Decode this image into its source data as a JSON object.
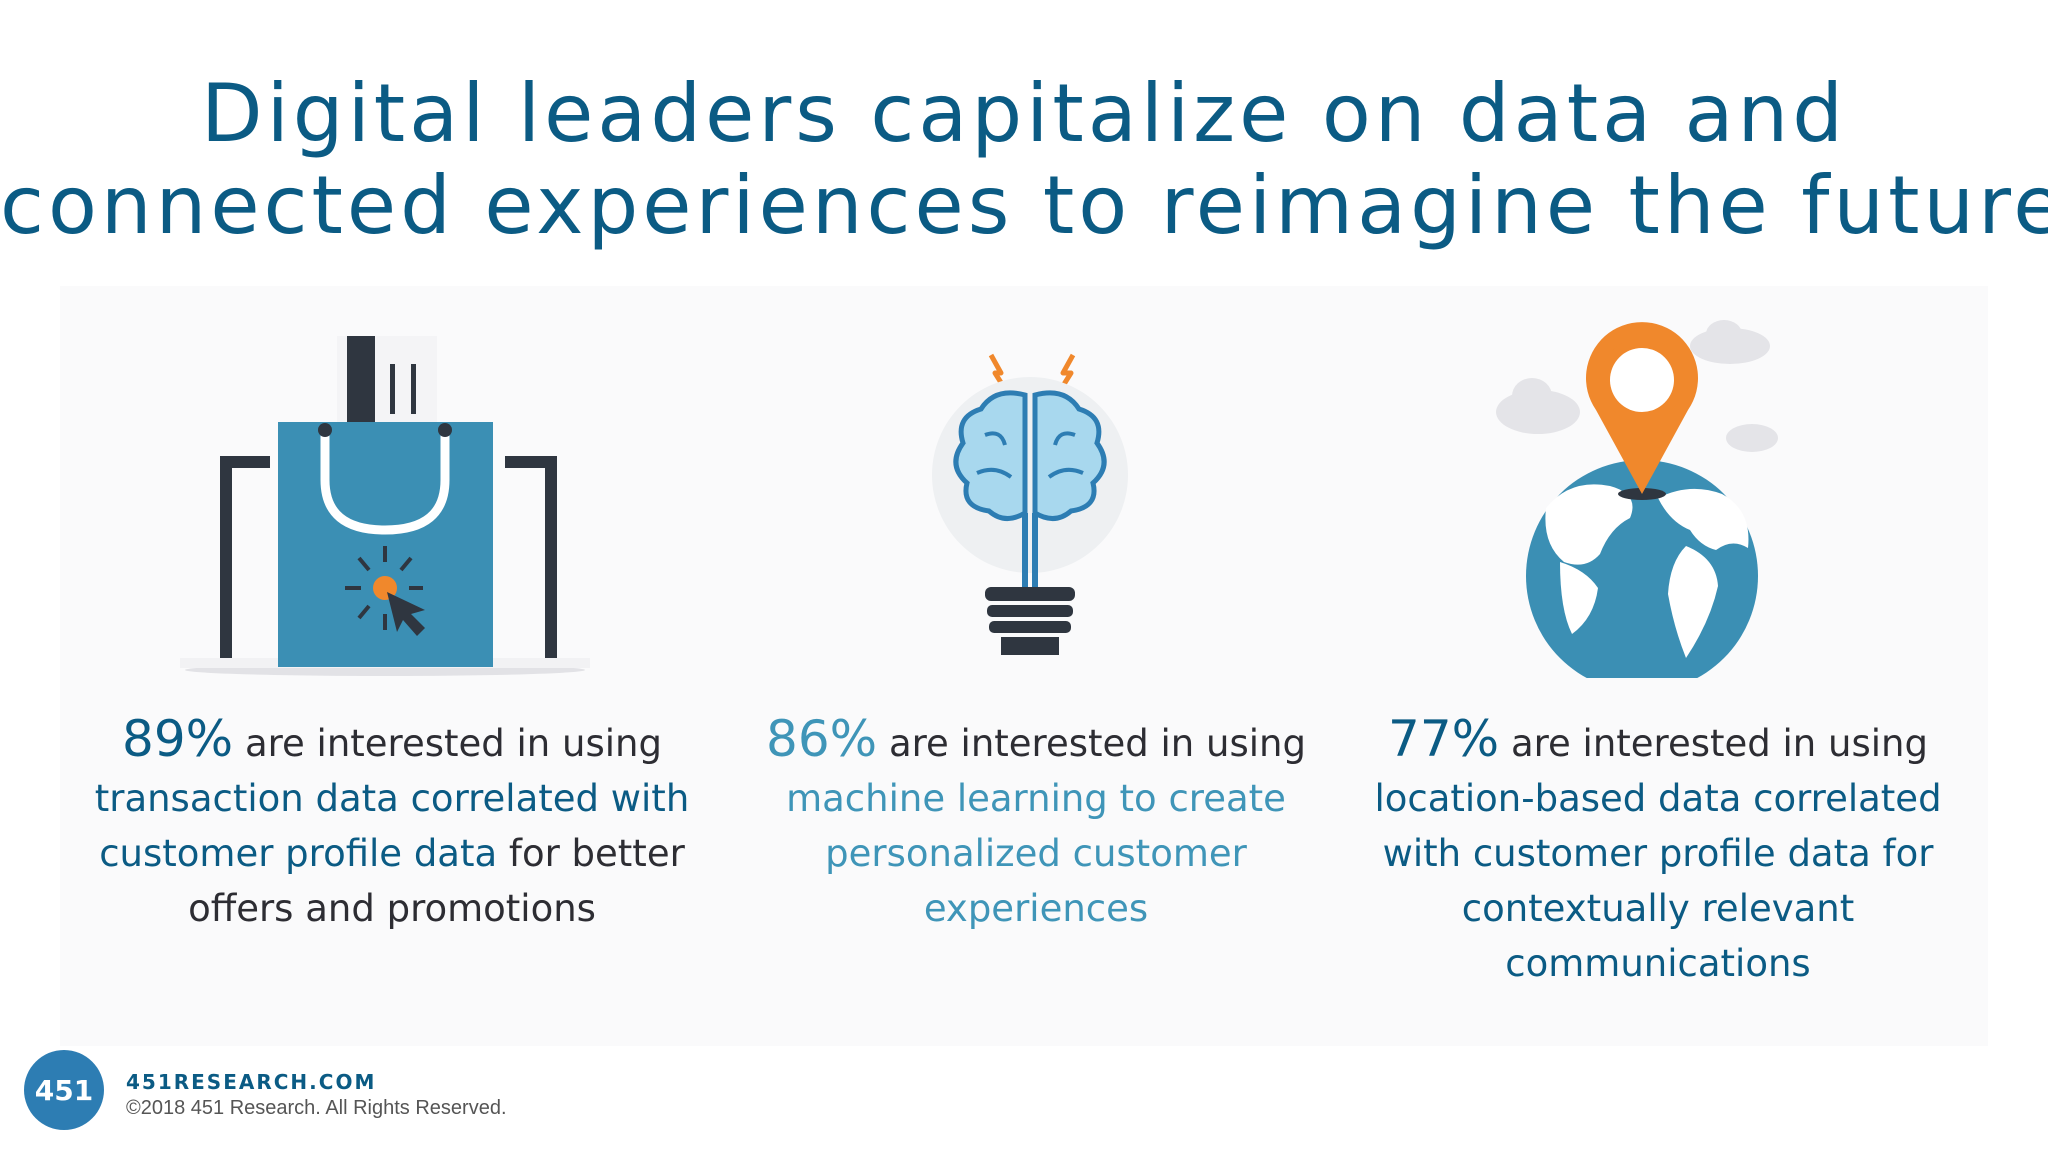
{
  "title": {
    "line1": "Digital leaders capitalize on data and",
    "line2": "connected experiences to reimagine the future"
  },
  "stats": [
    {
      "percent": "89%",
      "lead": " are interested in using",
      "highlight": "transaction data correlated with customer profile data",
      "tail": " for better offers and promotions",
      "icon": "shopping-bag-laptop-icon"
    },
    {
      "percent": "86%",
      "lead": " are interested in using ",
      "highlight": "machine learning to create personalized customer experiences",
      "tail": "",
      "icon": "lightbulb-brain-icon"
    },
    {
      "percent": "77%",
      "lead": " are interested in using",
      "highlight": "location-based data correlated with customer profile data for contextually relevant communications",
      "tail": "",
      "icon": "globe-location-pin-icon"
    }
  ],
  "footer": {
    "logo_text": "451",
    "site": "451RESEARCH.COM",
    "copyright": "©2018 451 Research. All Rights Reserved."
  },
  "colors": {
    "dark_blue": "#0b5b84",
    "light_blue": "#3f95b8",
    "orange": "#f0882c",
    "text": "#2d2d33"
  }
}
